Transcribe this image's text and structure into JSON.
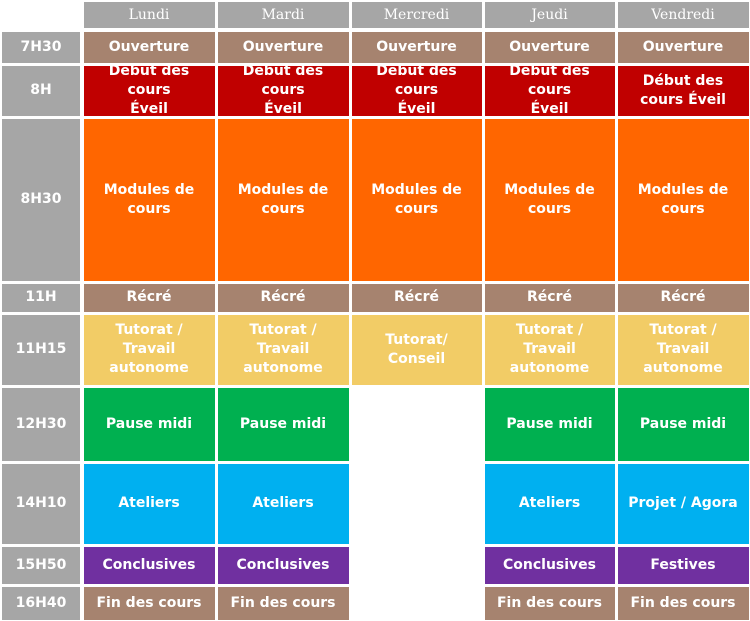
{
  "colors": {
    "header": "#a6a6a6",
    "time": "#a6a6a6",
    "brown": "#a6836f",
    "red": "#c00000",
    "orange": "#ff6600",
    "beige": "#f2cc66",
    "green": "#00b050",
    "blue": "#00b0f0",
    "purple": "#7030a0",
    "empty": "#ffffff"
  },
  "days": [
    "Lundi",
    "Mardi",
    "Mercredi",
    "Jeudi",
    "Vendredi"
  ],
  "times": [
    "7H30",
    "8H",
    "8H30",
    "11H",
    "11H15",
    "12H30",
    "14H10",
    "15H50",
    "16H40"
  ],
  "schedule": [
    [
      {
        "text": "Ouverture",
        "color": "brown"
      },
      {
        "text": "Ouverture",
        "color": "brown"
      },
      {
        "text": "Ouverture",
        "color": "brown"
      },
      {
        "text": "Ouverture",
        "color": "brown"
      },
      {
        "text": "Ouverture",
        "color": "brown"
      }
    ],
    [
      {
        "text": "Début des cours\nÉveil",
        "color": "red"
      },
      {
        "text": "Début des cours\nÉveil",
        "color": "red"
      },
      {
        "text": "Début des cours\nÉveil",
        "color": "red"
      },
      {
        "text": "Début des cours\nÉveil",
        "color": "red"
      },
      {
        "text": "Début des\ncours Éveil",
        "color": "red"
      }
    ],
    [
      {
        "text": "Modules de\ncours",
        "color": "orange"
      },
      {
        "text": "Modules de\ncours",
        "color": "orange"
      },
      {
        "text": "Modules de\ncours",
        "color": "orange"
      },
      {
        "text": "Modules de\ncours",
        "color": "orange"
      },
      {
        "text": "Modules de\ncours",
        "color": "orange"
      }
    ],
    [
      {
        "text": "Récré",
        "color": "brown"
      },
      {
        "text": "Récré",
        "color": "brown"
      },
      {
        "text": "Récré",
        "color": "brown"
      },
      {
        "text": "Récré",
        "color": "brown"
      },
      {
        "text": "Récré",
        "color": "brown"
      }
    ],
    [
      {
        "text": "Tutorat / Travail\nautonome",
        "color": "beige"
      },
      {
        "text": "Tutorat / Travail\nautonome",
        "color": "beige"
      },
      {
        "text": "Tutorat/ Conseil",
        "color": "beige"
      },
      {
        "text": "Tutorat / Travail\nautonome",
        "color": "beige"
      },
      {
        "text": "Tutorat /\nTravail\nautonome",
        "color": "beige"
      }
    ],
    [
      {
        "text": "Pause midi",
        "color": "green"
      },
      {
        "text": "Pause midi",
        "color": "green"
      },
      {
        "text": "",
        "color": "empty"
      },
      {
        "text": "Pause midi",
        "color": "green"
      },
      {
        "text": "Pause midi",
        "color": "green"
      }
    ],
    [
      {
        "text": "Ateliers",
        "color": "blue"
      },
      {
        "text": "Ateliers",
        "color": "blue"
      },
      {
        "text": "",
        "color": "empty"
      },
      {
        "text": "Ateliers",
        "color": "blue"
      },
      {
        "text": "Projet / Agora",
        "color": "blue"
      }
    ],
    [
      {
        "text": "Conclusives",
        "color": "purple"
      },
      {
        "text": "Conclusives",
        "color": "purple"
      },
      {
        "text": "",
        "color": "empty"
      },
      {
        "text": "Conclusives",
        "color": "purple"
      },
      {
        "text": "Festives",
        "color": "purple"
      }
    ],
    [
      {
        "text": "Fin des cours",
        "color": "brown"
      },
      {
        "text": "Fin des cours",
        "color": "brown"
      },
      {
        "text": "",
        "color": "empty"
      },
      {
        "text": "Fin des cours",
        "color": "brown"
      },
      {
        "text": "Fin des cours",
        "color": "brown"
      }
    ]
  ]
}
